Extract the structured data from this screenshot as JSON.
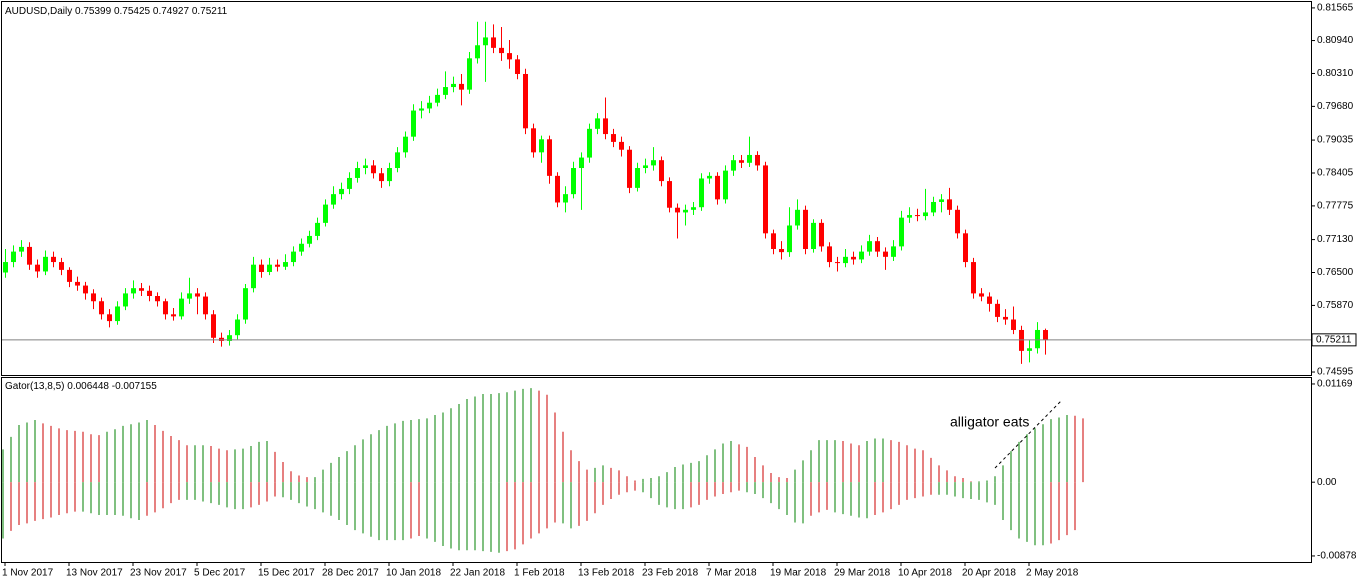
{
  "chart_data": [
    {
      "type": "candlestick",
      "title": "AUDUSD,Daily",
      "categories": [
        "1 Nov 2017",
        null,
        null,
        null,
        null,
        null,
        null,
        null,
        "13 Nov 2017",
        null,
        null,
        null,
        null,
        null,
        null,
        null,
        "23 Nov 2017",
        null,
        null,
        null,
        null,
        null,
        null,
        null,
        "5 Dec 2017",
        null,
        null,
        null,
        null,
        null,
        null,
        null,
        "15 Dec 2017",
        null,
        null,
        null,
        null,
        null,
        null,
        null,
        "28 Dec 2017",
        null,
        null,
        null,
        null,
        null,
        null,
        null,
        "10 Jan 2018",
        null,
        null,
        null,
        null,
        null,
        null,
        null,
        "22 Jan 2018",
        null,
        null,
        null,
        null,
        null,
        null,
        null,
        "1 Feb 2018",
        null,
        null,
        null,
        null,
        null,
        null,
        null,
        "13 Feb 2018",
        null,
        null,
        null,
        null,
        null,
        null,
        null,
        "23 Feb 2018",
        null,
        null,
        null,
        null,
        null,
        null,
        null,
        "7 Mar 2018",
        null,
        null,
        null,
        null,
        null,
        null,
        null,
        "19 Mar 2018",
        null,
        null,
        null,
        null,
        null,
        null,
        null,
        "29 Mar 2018",
        null,
        null,
        null,
        null,
        null,
        null,
        null,
        "10 Apr 2018",
        null,
        null,
        null,
        null,
        null,
        null,
        null,
        "20 Apr 2018",
        null,
        null,
        null,
        null,
        null,
        null,
        null,
        "2 May 2018",
        null,
        null
      ],
      "open": [
        0.765,
        0.767,
        0.769,
        0.7699,
        0.7665,
        0.7652,
        0.768,
        0.767,
        0.7655,
        0.7632,
        0.7625,
        0.761,
        0.7595,
        0.757,
        0.7557,
        0.7585,
        0.761,
        0.762,
        0.7615,
        0.7605,
        0.7595,
        0.757,
        0.7566,
        0.76,
        0.761,
        0.7604,
        0.757,
        0.7525,
        0.7519,
        0.753,
        0.756,
        0.762,
        0.7665,
        0.7651,
        0.7665,
        0.7661,
        0.767,
        0.769,
        0.7705,
        0.772,
        0.7745,
        0.778,
        0.78,
        0.781,
        0.7831,
        0.785,
        0.7855,
        0.784,
        0.7825,
        0.785,
        0.788,
        0.791,
        0.796,
        0.7964,
        0.7975,
        0.799,
        0.8005,
        0.8011,
        0.8,
        0.806,
        0.8085,
        0.81,
        0.808,
        0.807,
        0.8058,
        0.803,
        0.7926,
        0.788,
        0.7905,
        0.7835,
        0.7784,
        0.78,
        0.785,
        0.787,
        0.7925,
        0.7945,
        0.7915,
        0.79,
        0.7885,
        0.7812,
        0.785,
        0.7855,
        0.7865,
        0.7825,
        0.7774,
        0.7765,
        0.777,
        0.7775,
        0.783,
        0.7835,
        0.779,
        0.7845,
        0.7865,
        0.786,
        0.7875,
        0.7855,
        0.7725,
        0.7695,
        0.7689,
        0.774,
        0.777,
        0.7695,
        0.7745,
        0.77,
        0.767,
        0.7668,
        0.768,
        0.7675,
        0.769,
        0.771,
        0.769,
        0.768,
        0.77,
        0.7755,
        0.776,
        0.7758,
        0.7765,
        0.7785,
        0.779,
        0.777,
        0.7725,
        0.767,
        0.761,
        0.7604,
        0.759,
        0.7565,
        0.756,
        0.754,
        0.75,
        0.7505,
        0.75399
      ],
      "high": [
        0.7695,
        0.7702,
        0.7712,
        0.7708,
        0.7675,
        0.7692,
        0.769,
        0.7678,
        0.766,
        0.7642,
        0.7632,
        0.7618,
        0.7602,
        0.758,
        0.7595,
        0.762,
        0.7635,
        0.763,
        0.7625,
        0.7612,
        0.76,
        0.7582,
        0.7612,
        0.764,
        0.762,
        0.7612,
        0.7578,
        0.7535,
        0.754,
        0.757,
        0.7628,
        0.768,
        0.7675,
        0.7678,
        0.7675,
        0.7685,
        0.77,
        0.7715,
        0.773,
        0.7755,
        0.779,
        0.7815,
        0.7822,
        0.7842,
        0.7862,
        0.7868,
        0.7865,
        0.785,
        0.786,
        0.789,
        0.792,
        0.7972,
        0.7978,
        0.7988,
        0.8002,
        0.8035,
        0.8025,
        0.803,
        0.8072,
        0.813,
        0.813,
        0.8125,
        0.812,
        0.8095,
        0.8066,
        0.804,
        0.7935,
        0.7912,
        0.7912,
        0.7842,
        0.7815,
        0.7862,
        0.788,
        0.7935,
        0.7955,
        0.7985,
        0.7925,
        0.791,
        0.7892,
        0.786,
        0.7868,
        0.789,
        0.7872,
        0.7832,
        0.7782,
        0.778,
        0.7785,
        0.784,
        0.7842,
        0.7842,
        0.7855,
        0.7875,
        0.7875,
        0.791,
        0.7882,
        0.7862,
        0.7732,
        0.771,
        0.7775,
        0.779,
        0.7778,
        0.7752,
        0.7752,
        0.7708,
        0.768,
        0.7695,
        0.769,
        0.7702,
        0.7722,
        0.7718,
        0.7698,
        0.7712,
        0.7768,
        0.7775,
        0.7772,
        0.781,
        0.7795,
        0.78,
        0.7812,
        0.7778,
        0.7732,
        0.7678,
        0.762,
        0.7612,
        0.7598,
        0.758,
        0.7585,
        0.7548,
        0.752,
        0.7555,
        0.75425
      ],
      "low": [
        0.764,
        0.766,
        0.768,
        0.7655,
        0.764,
        0.7645,
        0.766,
        0.7645,
        0.7622,
        0.7615,
        0.7598,
        0.758,
        0.756,
        0.7545,
        0.755,
        0.7578,
        0.76,
        0.7605,
        0.7595,
        0.7585,
        0.756,
        0.7558,
        0.756,
        0.759,
        0.757,
        0.756,
        0.7515,
        0.7508,
        0.751,
        0.7522,
        0.7552,
        0.7612,
        0.764,
        0.7645,
        0.7652,
        0.7655,
        0.7662,
        0.7682,
        0.7698,
        0.7712,
        0.7738,
        0.7772,
        0.779,
        0.78,
        0.7822,
        0.7838,
        0.783,
        0.7812,
        0.7815,
        0.7842,
        0.787,
        0.7902,
        0.7945,
        0.7955,
        0.7968,
        0.7982,
        0.7995,
        0.797,
        0.7992,
        0.805,
        0.8015,
        0.807,
        0.8055,
        0.804,
        0.802,
        0.7915,
        0.787,
        0.786,
        0.782,
        0.7775,
        0.7765,
        0.7792,
        0.777,
        0.786,
        0.7915,
        0.7905,
        0.789,
        0.7872,
        0.7802,
        0.7805,
        0.784,
        0.7845,
        0.7815,
        0.7765,
        0.7715,
        0.774,
        0.776,
        0.7768,
        0.782,
        0.778,
        0.7782,
        0.7835,
        0.785,
        0.7852,
        0.7845,
        0.7715,
        0.7685,
        0.7675,
        0.768,
        0.7732,
        0.7685,
        0.7688,
        0.769,
        0.766,
        0.7652,
        0.766,
        0.7665,
        0.7668,
        0.7682,
        0.768,
        0.7655,
        0.7672,
        0.7692,
        0.7745,
        0.7748,
        0.775,
        0.7758,
        0.7765,
        0.776,
        0.7715,
        0.766,
        0.76,
        0.7595,
        0.7575,
        0.7555,
        0.755,
        0.7532,
        0.7475,
        0.7478,
        0.7495,
        0.74927
      ],
      "close": [
        0.767,
        0.769,
        0.7699,
        0.7665,
        0.7652,
        0.768,
        0.767,
        0.7655,
        0.7632,
        0.7625,
        0.761,
        0.7595,
        0.757,
        0.7557,
        0.7585,
        0.761,
        0.762,
        0.7615,
        0.7605,
        0.7595,
        0.757,
        0.7566,
        0.76,
        0.761,
        0.7604,
        0.757,
        0.7525,
        0.7519,
        0.753,
        0.756,
        0.762,
        0.7665,
        0.7651,
        0.7665,
        0.7661,
        0.767,
        0.769,
        0.7705,
        0.772,
        0.7745,
        0.778,
        0.78,
        0.781,
        0.7831,
        0.785,
        0.7855,
        0.784,
        0.7825,
        0.785,
        0.788,
        0.791,
        0.796,
        0.7964,
        0.7975,
        0.799,
        0.8005,
        0.8011,
        0.8,
        0.806,
        0.8085,
        0.81,
        0.808,
        0.807,
        0.8058,
        0.803,
        0.7926,
        0.788,
        0.7905,
        0.7835,
        0.7784,
        0.78,
        0.785,
        0.787,
        0.7925,
        0.7945,
        0.7915,
        0.79,
        0.7885,
        0.7812,
        0.785,
        0.7855,
        0.7865,
        0.7825,
        0.7774,
        0.7765,
        0.777,
        0.7775,
        0.783,
        0.7835,
        0.779,
        0.7845,
        0.7865,
        0.786,
        0.7875,
        0.7855,
        0.7725,
        0.7695,
        0.7689,
        0.774,
        0.777,
        0.7695,
        0.7745,
        0.77,
        0.767,
        0.7668,
        0.768,
        0.7675,
        0.769,
        0.771,
        0.769,
        0.768,
        0.77,
        0.7755,
        0.776,
        0.7758,
        0.7765,
        0.7785,
        0.779,
        0.777,
        0.7725,
        0.767,
        0.761,
        0.7604,
        0.759,
        0.7565,
        0.756,
        0.754,
        0.75,
        0.7505,
        0.754,
        0.75211
      ],
      "bull_color": "#00ff00",
      "bear_color": "#ff0000",
      "ylim": [
        0.74538,
        0.81678
      ],
      "yticks": [
        0.81565,
        {
          "value": 0.8094,
          "label": "0.80940"
        },
        {
          "value": 0.8031,
          "label": "0.80310"
        },
        {
          "value": 0.7968,
          "label": "0.79680"
        },
        0.79035,
        0.78405,
        0.77775,
        {
          "value": 0.7713,
          "label": "0.77130"
        },
        {
          "value": 0.765,
          "label": "0.76500"
        },
        {
          "value": 0.7587,
          "label": "0.75870"
        },
        0.74595
      ]
    },
    {
      "type": "gator",
      "title": "Gator(13,8,5)",
      "current": [
        0.006448,
        -0.007155
      ],
      "annotation": "alligator eats",
      "upper": [
        0.0039,
        0.0054,
        0.0068,
        0.0071,
        0.0074,
        0.007,
        0.0067,
        0.0064,
        0.0062,
        0.0061,
        0.006,
        0.0057,
        0.0056,
        0.006,
        0.0063,
        0.0067,
        0.0069,
        0.0071,
        0.0074,
        0.0068,
        0.0061,
        0.0055,
        0.005,
        0.0044,
        0.0044,
        0.0044,
        0.0043,
        0.004,
        0.0038,
        0.0039,
        0.004,
        0.0043,
        0.0048,
        0.0049,
        0.0036,
        0.0024,
        0.0013,
        0.0008,
        0.0006,
        0.0006,
        0.0015,
        0.0023,
        0.003,
        0.0037,
        0.0044,
        0.0051,
        0.0057,
        0.0062,
        0.0067,
        0.007,
        0.0073,
        0.0074,
        0.0075,
        0.0076,
        0.008,
        0.0083,
        0.0088,
        0.0093,
        0.0099,
        0.0102,
        0.0105,
        0.0105,
        0.0106,
        0.0107,
        0.0109,
        0.0111,
        0.0112,
        0.0109,
        0.0104,
        0.0083,
        0.006,
        0.0038,
        0.0025,
        0.0015,
        0.0017,
        0.002,
        0.0017,
        0.0014,
        0.0007,
        0.0002,
        0.0004,
        0.0005,
        0.0007,
        0.0012,
        0.0018,
        0.0021,
        0.0023,
        0.0025,
        0.0032,
        0.0039,
        0.0046,
        0.0049,
        0.0045,
        0.0042,
        0.003,
        0.002,
        0.0011,
        0.0006,
        0.0005,
        0.0015,
        0.0026,
        0.0038,
        0.005,
        0.005,
        0.005,
        0.0049,
        0.0046,
        0.0044,
        0.0049,
        0.0052,
        0.0052,
        0.005,
        0.0048,
        0.0044,
        0.004,
        0.0038,
        0.0029,
        0.002,
        0.0014,
        0.0007,
        0.0005,
        0.0001,
        0.0001,
        0.0002,
        0.0007,
        0.002,
        0.0037,
        0.0048,
        0.0057,
        0.0064,
        0.0069,
        0.0075,
        0.0077,
        0.008,
        0.0079,
        0.0076
      ],
      "lower": [
        -0.0067,
        -0.0058,
        -0.0051,
        -0.0049,
        -0.0046,
        -0.0044,
        -0.0042,
        -0.0039,
        -0.0037,
        -0.0035,
        -0.0035,
        -0.0037,
        -0.0039,
        -0.0039,
        -0.0039,
        -0.004,
        -0.0043,
        -0.0045,
        -0.004,
        -0.0036,
        -0.0031,
        -0.0025,
        -0.0021,
        -0.0021,
        -0.0021,
        -0.0023,
        -0.0025,
        -0.0027,
        -0.003,
        -0.0032,
        -0.0032,
        -0.003,
        -0.0027,
        -0.0023,
        -0.0017,
        -0.0018,
        -0.0021,
        -0.0025,
        -0.0029,
        -0.0032,
        -0.0036,
        -0.004,
        -0.0045,
        -0.0051,
        -0.0057,
        -0.0061,
        -0.0065,
        -0.0069,
        -0.0069,
        -0.0069,
        -0.0069,
        -0.0067,
        -0.0064,
        -0.0067,
        -0.0071,
        -0.0076,
        -0.0079,
        -0.0081,
        -0.0081,
        -0.0081,
        -0.0082,
        -0.0083,
        -0.0084,
        -0.0082,
        -0.008,
        -0.0074,
        -0.0067,
        -0.0061,
        -0.0055,
        -0.0048,
        -0.0049,
        -0.0055,
        -0.0052,
        -0.0046,
        -0.0037,
        -0.0027,
        -0.002,
        -0.0015,
        -0.0012,
        -0.001,
        -0.0012,
        -0.0019,
        -0.0027,
        -0.003,
        -0.0032,
        -0.0032,
        -0.003,
        -0.0027,
        -0.0021,
        -0.0017,
        -0.0014,
        -0.0012,
        -0.001,
        -0.0012,
        -0.0014,
        -0.0019,
        -0.0025,
        -0.0032,
        -0.0039,
        -0.0048,
        -0.0049,
        -0.004,
        -0.0036,
        -0.0033,
        -0.0036,
        -0.0038,
        -0.004,
        -0.0042,
        -0.0043,
        -0.0039,
        -0.0036,
        -0.0032,
        -0.0027,
        -0.0021,
        -0.0019,
        -0.0017,
        -0.0015,
        -0.0015,
        -0.0015,
        -0.0017,
        -0.0019,
        -0.002,
        -0.0021,
        -0.0024,
        -0.0027,
        -0.0045,
        -0.0057,
        -0.0067,
        -0.0071,
        -0.0075,
        -0.0075,
        -0.0073,
        -0.0069,
        -0.0063,
        -0.0057,
        null
      ],
      "up_color": "#008000",
      "down_color": "#cc0000",
      "ylim": [
        -0.0095,
        0.0124
      ],
      "yticks": [
        0.01169,
        {
          "value": 0,
          "label": "0.00"
        },
        -0.00878
      ]
    }
  ]
}
